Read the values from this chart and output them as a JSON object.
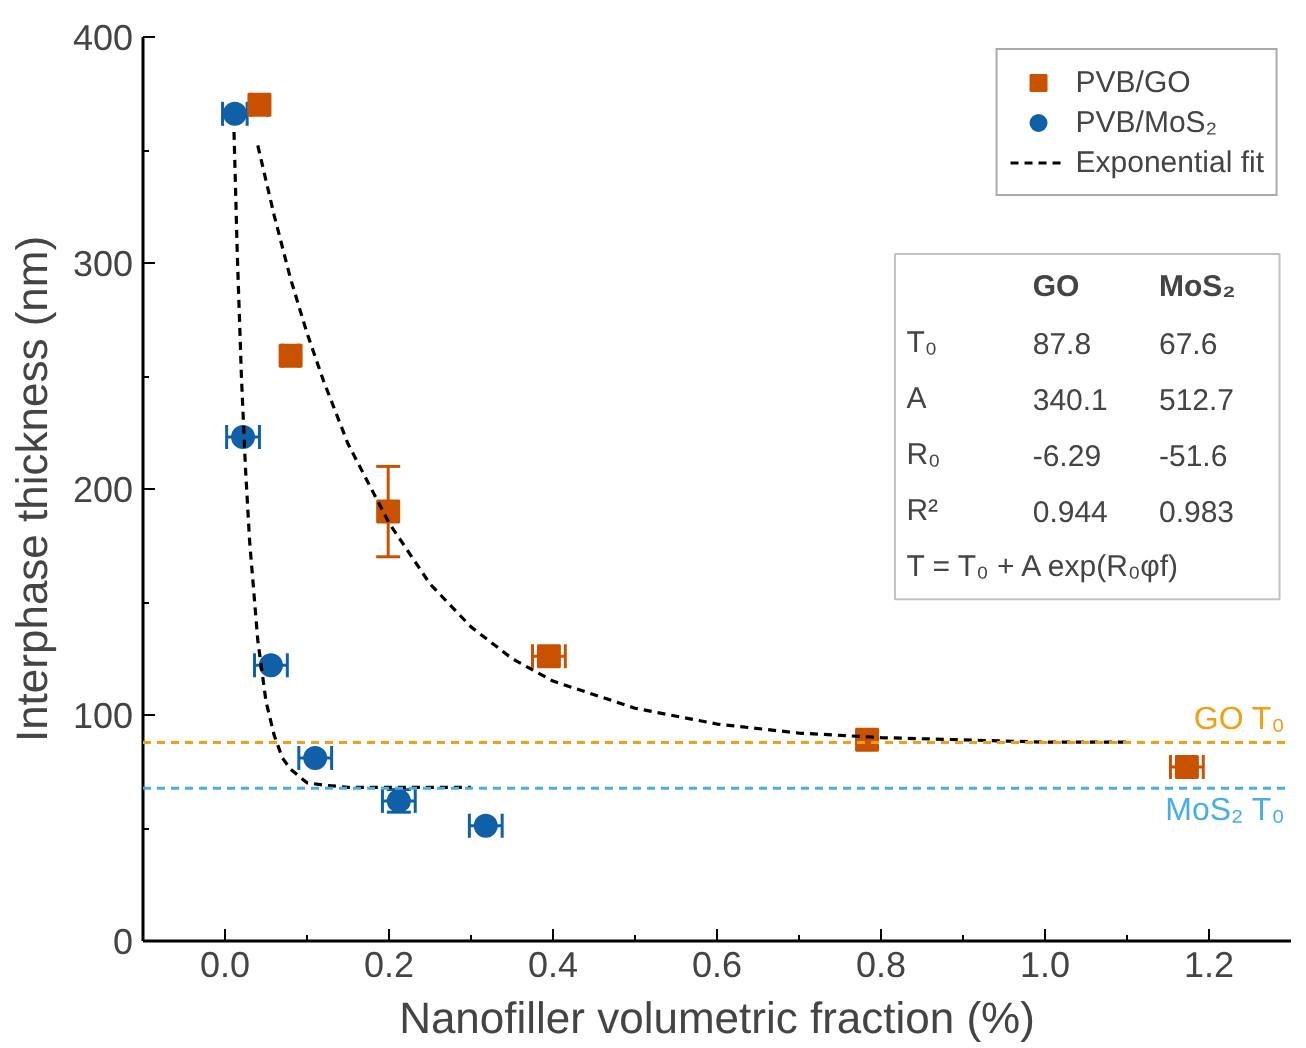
{
  "chart_data": {
    "type": "scatter",
    "xlabel": "Nanofiller volumetric fraction (%)",
    "ylabel": "Interphase thickness (nm)",
    "xlim": [
      -0.1,
      1.3
    ],
    "ylim": [
      0,
      400
    ],
    "xticks": [
      {
        "value": 0,
        "label": "0.0"
      },
      {
        "value": 0.1,
        "label": null
      },
      {
        "value": 0.2,
        "label": "0.2"
      },
      {
        "value": 0.3,
        "label": null
      },
      {
        "value": 0.4,
        "label": "0.4"
      },
      {
        "value": 0.5,
        "label": null
      },
      {
        "value": 0.6,
        "label": "0.6"
      },
      {
        "value": 0.7,
        "label": null
      },
      {
        "value": 0.8,
        "label": "0.8"
      },
      {
        "value": 0.9,
        "label": null
      },
      {
        "value": 1.0,
        "label": "1.0"
      },
      {
        "value": 1.1,
        "label": null
      },
      {
        "value": 1.2,
        "label": "1.2"
      }
    ],
    "yticks": [
      0,
      {
        "value": 50,
        "label": null
      },
      100,
      {
        "value": 150,
        "label": null
      },
      200,
      {
        "value": 250,
        "label": null
      },
      300,
      {
        "value": 350,
        "label": null
      },
      400
    ],
    "grid": false,
    "legend": "top right",
    "series": [
      {
        "name": "PVB/GO",
        "marker": "square",
        "color": "#c85200",
        "x": [
          0.042,
          0.08,
          0.199,
          0.395,
          0.783,
          1.173
        ],
        "values": [
          370,
          259,
          190,
          126,
          89,
          77
        ],
        "errors": [
          null,
          null,
          20,
          null,
          null,
          null
        ],
        "xerrors": [
          0.01,
          0.01,
          null,
          0.02,
          null,
          0.02
        ]
      },
      {
        "name": "PVB/MoS₂",
        "marker": "circle",
        "color": "#1060a8",
        "x": [
          0.012,
          0.022,
          0.056,
          0.11,
          0.212,
          0.318
        ],
        "values": [
          366,
          223,
          122,
          81,
          62,
          51
        ],
        "errors": [
          null,
          null,
          null,
          null,
          5,
          null
        ],
        "xerrors": [
          0.015,
          0.02,
          0.02,
          0.02,
          0.02,
          0.02
        ]
      },
      {
        "name": "Exponential fit",
        "type": "line",
        "marker": "none",
        "line_style": "dashed",
        "color": "#000000",
        "x": [
          0.04,
          0.06,
          0.08,
          0.1,
          0.12,
          0.15,
          0.2,
          0.25,
          0.3,
          0.35,
          0.4,
          0.5,
          0.6,
          0.7,
          0.8,
          0.9,
          1.0,
          1.1
        ],
        "values": [
          352,
          321,
          293,
          269,
          248,
          220,
          185,
          158,
          139,
          125,
          115,
          103,
          96,
          92,
          90,
          89,
          88,
          88
        ]
      },
      {
        "type": "line",
        "marker": "none",
        "line_style": "dashed",
        "color": "#000000",
        "x": [
          0.011,
          0.015,
          0.02,
          0.025,
          0.03,
          0.04,
          0.05,
          0.06,
          0.07,
          0.08,
          0.1,
          0.12,
          0.15,
          0.2,
          0.3
        ],
        "values": [
          358,
          304,
          250,
          209,
          177,
          133,
          106,
          91,
          81,
          76,
          70,
          69,
          68,
          68,
          68
        ]
      }
    ],
    "ref_lines": [
      {
        "axis": "y",
        "value": 87.8,
        "label": "GO T₀",
        "color": "#f0a010",
        "line_style": "dashed"
      },
      {
        "axis": "y",
        "value": 67.6,
        "label": "MoS₂ T₀",
        "color": "#4aaee6",
        "line_style": "dashed"
      }
    ],
    "annotations": [
      "GO",
      "MoS₂",
      "T₀",
      "87.8",
      "67.6",
      "A",
      "340.1",
      "512.7",
      "R₀",
      "-6.29",
      "-51.6",
      "R²",
      "0.944",
      "0.983",
      "T = T₀ + A exp(R₀φf)"
    ]
  }
}
